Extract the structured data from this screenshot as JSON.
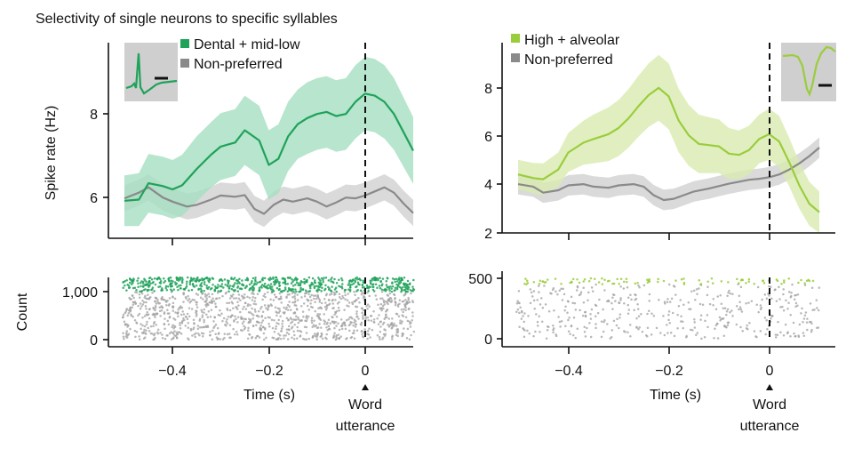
{
  "title": "Selectivity of single neurons to specific syllables",
  "colors": {
    "dental": "#1fa25a",
    "dental_band": "#a5dfc0",
    "high": "#9acd3c",
    "high_band": "#d9ebb0",
    "nonpref": "#8a8a8a",
    "nonpref_band": "#d6d6d6",
    "raster_gray": "#a0a0a0",
    "waveform_bg": "#cfcfcf"
  },
  "shared": {
    "xlabel": "Time (s)",
    "xticks": [
      -0.4,
      -0.2,
      0
    ],
    "xtick_labels": [
      "−0.4",
      "−0.2",
      "0"
    ],
    "xlim": [
      -0.5,
      0.1
    ],
    "marker_word": "Word",
    "marker_utterance": "utterance"
  },
  "chart_data": [
    {
      "type": "line",
      "panel": "left-top",
      "ylabel": "Spike rate (Hz)",
      "ylim": [
        5.0,
        9.8
      ],
      "yticks": [
        6,
        8
      ],
      "ytick_labels": [
        "6",
        "8"
      ],
      "legend": {
        "placement": "top-left",
        "entries": [
          "Dental + mid-low",
          "Non-preferred"
        ]
      },
      "inset": "waveform",
      "series": [
        {
          "name": "Dental + mid-low",
          "color": "dental",
          "x": [
            -0.5,
            -0.47,
            -0.45,
            -0.42,
            -0.4,
            -0.38,
            -0.35,
            -0.32,
            -0.3,
            -0.27,
            -0.25,
            -0.22,
            -0.2,
            -0.18,
            -0.16,
            -0.14,
            -0.12,
            -0.1,
            -0.08,
            -0.06,
            -0.04,
            -0.02,
            0.0,
            0.02,
            0.04,
            0.06,
            0.08,
            0.1
          ],
          "y": [
            5.92,
            5.95,
            6.35,
            6.28,
            6.2,
            6.3,
            6.7,
            7.05,
            7.25,
            7.35,
            7.65,
            7.4,
            6.8,
            6.95,
            7.5,
            7.8,
            7.95,
            8.05,
            8.1,
            8.0,
            8.05,
            8.35,
            8.55,
            8.5,
            8.35,
            8.05,
            7.6,
            7.15
          ],
          "band": [
            0.62,
            0.65,
            0.72,
            0.72,
            0.72,
            0.75,
            0.8,
            0.8,
            0.82,
            0.82,
            0.85,
            0.85,
            0.85,
            0.85,
            0.85,
            0.85,
            0.88,
            0.88,
            0.88,
            0.88,
            0.88,
            0.9,
            0.9,
            0.9,
            0.9,
            0.88,
            0.85,
            0.82
          ]
        },
        {
          "name": "Non-preferred",
          "color": "nonpref",
          "x": [
            -0.5,
            -0.47,
            -0.45,
            -0.42,
            -0.4,
            -0.37,
            -0.35,
            -0.32,
            -0.3,
            -0.27,
            -0.25,
            -0.23,
            -0.21,
            -0.19,
            -0.17,
            -0.15,
            -0.12,
            -0.1,
            -0.08,
            -0.06,
            -0.04,
            -0.02,
            0.0,
            0.02,
            0.04,
            0.06,
            0.08,
            0.1
          ],
          "y": [
            5.98,
            6.12,
            6.25,
            6.0,
            5.9,
            5.78,
            5.82,
            5.95,
            6.05,
            6.02,
            6.06,
            5.72,
            5.6,
            5.82,
            5.95,
            5.9,
            5.98,
            5.9,
            5.78,
            5.88,
            6.0,
            5.98,
            6.05,
            6.15,
            6.25,
            6.12,
            5.85,
            5.62
          ],
          "band": [
            0.32,
            0.32,
            0.32,
            0.32,
            0.32,
            0.32,
            0.32,
            0.32,
            0.32,
            0.32,
            0.32,
            0.32,
            0.32,
            0.32,
            0.32,
            0.32,
            0.32,
            0.32,
            0.32,
            0.32,
            0.32,
            0.32,
            0.32,
            0.32,
            0.32,
            0.32,
            0.32,
            0.32
          ]
        }
      ]
    },
    {
      "type": "line",
      "panel": "right-top",
      "ylabel": "",
      "ylim": [
        2.0,
        9.8
      ],
      "yticks": [
        2,
        4,
        6,
        8
      ],
      "ytick_labels": [
        "2",
        "4",
        "6",
        "8"
      ],
      "legend": {
        "placement": "top-left",
        "entries": [
          "High + alveolar",
          "Non-preferred"
        ]
      },
      "inset": "waveform",
      "series": [
        {
          "name": "High + alveolar",
          "color": "high",
          "x": [
            -0.5,
            -0.47,
            -0.45,
            -0.42,
            -0.4,
            -0.37,
            -0.35,
            -0.32,
            -0.3,
            -0.28,
            -0.26,
            -0.24,
            -0.22,
            -0.2,
            -0.18,
            -0.16,
            -0.14,
            -0.12,
            -0.1,
            -0.08,
            -0.06,
            -0.04,
            -0.02,
            0.0,
            0.02,
            0.04,
            0.06,
            0.08,
            0.1
          ],
          "y": [
            4.4,
            4.25,
            4.2,
            4.6,
            5.3,
            5.7,
            5.85,
            6.05,
            6.3,
            6.7,
            7.2,
            7.65,
            7.95,
            7.6,
            6.6,
            6.0,
            5.65,
            5.6,
            5.55,
            5.25,
            5.2,
            5.4,
            5.85,
            6.05,
            5.75,
            4.9,
            3.95,
            3.2,
            2.85
          ],
          "band": [
            0.6,
            0.62,
            0.65,
            0.7,
            0.8,
            0.9,
            1.0,
            1.1,
            1.15,
            1.2,
            1.25,
            1.3,
            1.35,
            1.35,
            1.3,
            1.25,
            1.2,
            1.15,
            1.1,
            1.05,
            1.0,
            1.0,
            1.0,
            1.05,
            1.05,
            1.0,
            0.95,
            0.9,
            0.85
          ]
        },
        {
          "name": "Non-preferred",
          "color": "nonpref",
          "x": [
            -0.5,
            -0.47,
            -0.45,
            -0.42,
            -0.4,
            -0.37,
            -0.35,
            -0.32,
            -0.3,
            -0.27,
            -0.25,
            -0.23,
            -0.21,
            -0.19,
            -0.17,
            -0.15,
            -0.12,
            -0.1,
            -0.08,
            -0.06,
            -0.04,
            -0.02,
            0.0,
            0.02,
            0.04,
            0.06,
            0.08,
            0.1
          ],
          "y": [
            4.0,
            3.9,
            3.65,
            3.75,
            3.95,
            4.0,
            3.9,
            3.85,
            3.95,
            4.0,
            3.9,
            3.55,
            3.35,
            3.4,
            3.55,
            3.7,
            3.82,
            3.92,
            4.02,
            4.1,
            4.18,
            4.22,
            4.28,
            4.4,
            4.6,
            4.85,
            5.15,
            5.5
          ],
          "band": [
            0.42,
            0.42,
            0.42,
            0.42,
            0.42,
            0.42,
            0.42,
            0.42,
            0.42,
            0.42,
            0.42,
            0.42,
            0.42,
            0.42,
            0.42,
            0.42,
            0.42,
            0.42,
            0.42,
            0.42,
            0.42,
            0.42,
            0.42,
            0.42,
            0.42,
            0.42,
            0.42,
            0.42
          ]
        }
      ]
    },
    {
      "type": "scatter",
      "panel": "left-raster",
      "ylabel": "Count",
      "ylim": [
        0,
        1300
      ],
      "yticks": [
        0,
        1000
      ],
      "ytick_labels": [
        "0",
        "1,000"
      ],
      "trials_nonpref": [
        0,
        1000
      ],
      "trials_pref": [
        1000,
        1300
      ],
      "density_nonpref": 1100,
      "density_pref": 650
    },
    {
      "type": "scatter",
      "panel": "right-raster",
      "ylabel": "",
      "ylim": [
        0,
        500
      ],
      "yticks": [
        0,
        500
      ],
      "ytick_labels": [
        "0",
        "500"
      ],
      "trials_nonpref": [
        0,
        450
      ],
      "trials_pref": [
        450,
        500
      ],
      "density_nonpref": 420,
      "density_pref": 90
    }
  ]
}
